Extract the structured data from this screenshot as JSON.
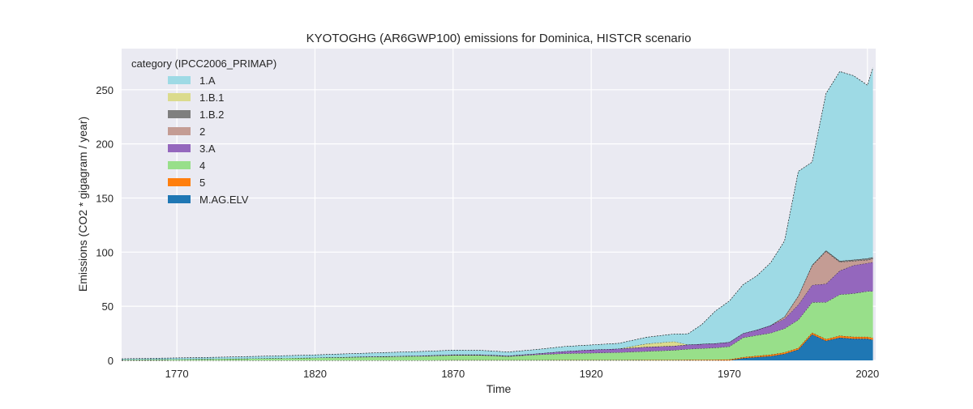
{
  "chart_data": {
    "type": "area",
    "stacked": true,
    "title": "KYOTOGHG (AR6GWP100) emissions for Dominica, HISTCR scenario",
    "xlabel": "Time",
    "ylabel": "Emissions (CO2 * gigagram / year)",
    "xlim": [
      1750,
      2023
    ],
    "ylim": [
      0,
      288
    ],
    "xticks": [
      1770,
      1820,
      1870,
      1920,
      1970,
      2020
    ],
    "yticks": [
      0,
      50,
      100,
      150,
      200,
      250
    ],
    "grid": true,
    "legend": {
      "title": "category (IPCC2006_PRIMAP)",
      "placement": "top-left"
    },
    "x": [
      1750,
      1760,
      1770,
      1780,
      1790,
      1800,
      1810,
      1820,
      1830,
      1840,
      1850,
      1860,
      1870,
      1880,
      1890,
      1900,
      1910,
      1920,
      1930,
      1940,
      1950,
      1955,
      1960,
      1965,
      1970,
      1975,
      1980,
      1985,
      1990,
      1995,
      2000,
      2005,
      2010,
      2015,
      2020,
      2022
    ],
    "series": [
      {
        "name": "M.AG.ELV",
        "color": "#1f77b4",
        "values": [
          0,
          0,
          0,
          0,
          0,
          0,
          0,
          0,
          0,
          0,
          0,
          0,
          0,
          0,
          0,
          0,
          0,
          0,
          0,
          0,
          0,
          0,
          0,
          0,
          0,
          2,
          3,
          4,
          6,
          10,
          24,
          18,
          21,
          20,
          20,
          19
        ]
      },
      {
        "name": "5",
        "color": "#ff7f0e",
        "values": [
          0,
          0,
          0,
          0,
          0,
          0,
          0,
          0,
          0,
          0,
          0,
          0,
          0.2,
          0.2,
          0.2,
          0.2,
          0.3,
          0.3,
          0.3,
          0.4,
          0.4,
          0.5,
          0.6,
          0.7,
          0.8,
          1.0,
          1.2,
          1.3,
          1.4,
          1.5,
          1.6,
          1.7,
          1.8,
          1.8,
          1.8,
          1.8
        ]
      },
      {
        "name": "4",
        "color": "#98df8a",
        "values": [
          0.5,
          0.8,
          1.0,
          1.2,
          1.5,
          1.8,
          2.1,
          2.4,
          2.8,
          3.2,
          3.6,
          4.0,
          4.5,
          4.5,
          3.5,
          5.0,
          6.0,
          6.5,
          7.0,
          8.0,
          9.0,
          10.0,
          10.5,
          11.0,
          12.0,
          18,
          19,
          20,
          22,
          26,
          28,
          34,
          38,
          40,
          42,
          43
        ]
      },
      {
        "name": "3.A",
        "color": "#9467bd",
        "values": [
          0,
          0,
          0,
          0,
          0,
          0,
          0,
          0.1,
          0.2,
          0.3,
          0.4,
          0.5,
          0.6,
          0.6,
          0.6,
          1.0,
          2.0,
          3.0,
          3.5,
          4.0,
          4.0,
          4.0,
          4.0,
          4.0,
          4.0,
          4.0,
          5,
          7,
          9,
          14,
          16,
          17,
          22,
          26,
          26,
          27
        ]
      },
      {
        "name": "2",
        "color": "#c49c94",
        "values": [
          0,
          0,
          0,
          0,
          0,
          0,
          0,
          0,
          0,
          0,
          0,
          0,
          0,
          0,
          0,
          0,
          0,
          0,
          0,
          0,
          0,
          0,
          0,
          0,
          0,
          0,
          0,
          0,
          2,
          8,
          18,
          30,
          8,
          4,
          3,
          3
        ]
      },
      {
        "name": "1.B.2",
        "color": "#7f7f7f",
        "values": [
          0,
          0,
          0,
          0,
          0,
          0,
          0,
          0,
          0,
          0,
          0,
          0,
          0,
          0,
          0,
          0,
          0,
          0,
          0,
          0,
          0,
          0,
          0,
          0,
          0,
          0,
          0,
          0,
          0,
          0.2,
          0.5,
          0.8,
          1.0,
          1.2,
          1.4,
          1.5
        ]
      },
      {
        "name": "1.B.1",
        "color": "#dbdb8d",
        "values": [
          0,
          0,
          0,
          0,
          0,
          0,
          0,
          0,
          0,
          0,
          0,
          0,
          0,
          0,
          0,
          0,
          0,
          0,
          0,
          3,
          4,
          0,
          0,
          0,
          0,
          0,
          0,
          0,
          0,
          0,
          0,
          0,
          0,
          0,
          0,
          0
        ]
      },
      {
        "name": "1.A",
        "color": "#9edae5",
        "values": [
          1,
          1.1,
          1.3,
          1.5,
          1.7,
          2.0,
          2.3,
          2.6,
          3.0,
          3.3,
          3.6,
          3.9,
          4.1,
          4.0,
          3.5,
          3.8,
          4.5,
          4.5,
          5.0,
          6.0,
          7.0,
          10,
          18,
          30,
          38,
          45,
          50,
          58,
          70,
          115,
          95,
          145,
          175,
          170,
          160,
          175
        ]
      }
    ]
  }
}
